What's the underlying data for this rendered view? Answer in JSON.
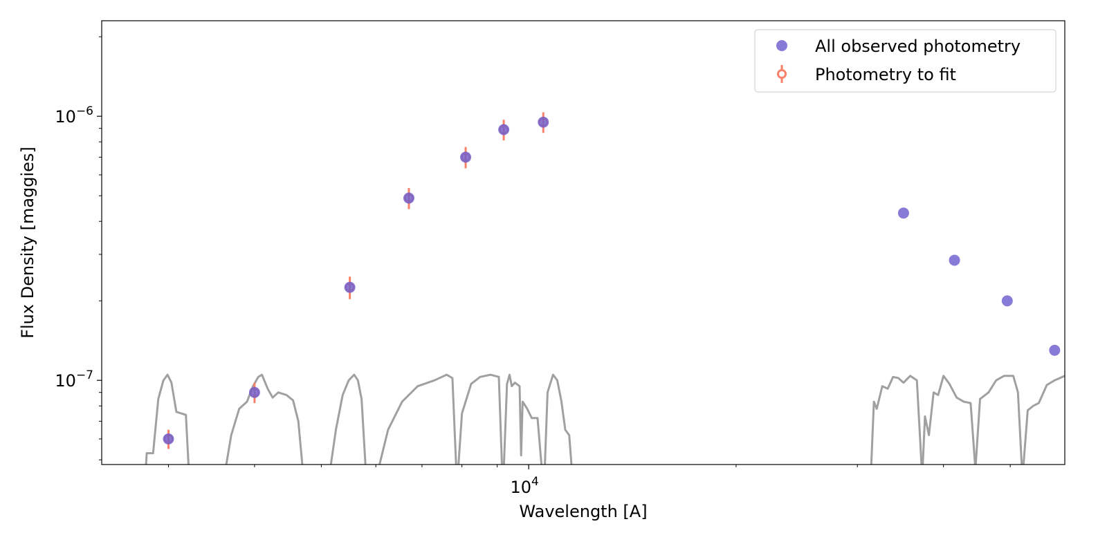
{
  "chart_data": {
    "type": "scatter",
    "title": "",
    "xlabel": "Wavelength [A]",
    "ylabel": "Flux Density [maggies]",
    "xscale": "log",
    "yscale": "log",
    "xlim": [
      2400,
      60000
    ],
    "ylim": [
      4.8e-08,
      2.3e-06
    ],
    "x_major_ticks": [
      10000
    ],
    "y_major_ticks": [
      1e-07,
      1e-06
    ],
    "grid": false,
    "legend_position": "top-right",
    "series": [
      {
        "name": "All observed photometry",
        "marker": "circle",
        "color": "#6a5acd",
        "points": [
          {
            "x": 3000,
            "y": 6e-08
          },
          {
            "x": 4000,
            "y": 9e-08
          },
          {
            "x": 5500,
            "y": 2.25e-07
          },
          {
            "x": 6700,
            "y": 4.9e-07
          },
          {
            "x": 8100,
            "y": 7e-07
          },
          {
            "x": 9200,
            "y": 8.9e-07
          },
          {
            "x": 10500,
            "y": 9.5e-07
          },
          {
            "x": 35000,
            "y": 4.3e-07
          },
          {
            "x": 41500,
            "y": 2.85e-07
          },
          {
            "x": 49500,
            "y": 2e-07
          },
          {
            "x": 58000,
            "y": 1.3e-07
          }
        ]
      },
      {
        "name": "Photometry to fit",
        "marker": "errorbar",
        "color": "#fa8068",
        "points": [
          {
            "x": 3000,
            "y": 6e-08,
            "yerr": 5e-09
          },
          {
            "x": 4000,
            "y": 9e-08,
            "yerr": 8e-09
          },
          {
            "x": 5500,
            "y": 2.25e-07,
            "yerr": 2.2e-08
          },
          {
            "x": 6700,
            "y": 4.9e-07,
            "yerr": 4.5e-08
          },
          {
            "x": 8100,
            "y": 7e-07,
            "yerr": 6.5e-08
          },
          {
            "x": 9200,
            "y": 8.9e-07,
            "yerr": 8e-08
          },
          {
            "x": 10500,
            "y": 9.5e-07,
            "yerr": 8.5e-08
          }
        ]
      }
    ],
    "filter_curves": {
      "color": "#a0a0a0",
      "curves": [
        [
          [
            2780,
            4.6e-08
          ],
          [
            2790,
            5.3e-08
          ],
          [
            2850,
            5.3e-08
          ],
          [
            2900,
            8.5e-08
          ],
          [
            2950,
            1e-07
          ],
          [
            2990,
            1.05e-07
          ],
          [
            3030,
            9.8e-08
          ],
          [
            3080,
            7.6e-08
          ],
          [
            3180,
            7.4e-08
          ],
          [
            3210,
            4.6e-08
          ]
        ],
        [
          [
            3630,
            4.6e-08
          ],
          [
            3700,
            6.2e-08
          ],
          [
            3800,
            7.8e-08
          ],
          [
            3900,
            8.3e-08
          ],
          [
            3980,
            9.5e-08
          ],
          [
            4050,
            1.03e-07
          ],
          [
            4100,
            1.05e-07
          ],
          [
            4180,
            9.3e-08
          ],
          [
            4250,
            8.6e-08
          ],
          [
            4330,
            9e-08
          ],
          [
            4450,
            8.8e-08
          ],
          [
            4550,
            8.4e-08
          ],
          [
            4630,
            7e-08
          ],
          [
            4700,
            4.6e-08
          ]
        ],
        [
          [
            5150,
            4.6e-08
          ],
          [
            5250,
            6.5e-08
          ],
          [
            5370,
            8.8e-08
          ],
          [
            5480,
            1e-07
          ],
          [
            5580,
            1.05e-07
          ],
          [
            5650,
            1e-07
          ],
          [
            5720,
            8.5e-08
          ],
          [
            5800,
            4.6e-08
          ]
        ],
        [
          [
            6050,
            4.6e-08
          ],
          [
            6250,
            6.5e-08
          ],
          [
            6550,
            8.3e-08
          ],
          [
            6900,
            9.5e-08
          ],
          [
            7300,
            1e-07
          ],
          [
            7600,
            1.05e-07
          ],
          [
            7750,
            1.02e-07
          ],
          [
            7850,
            4.6e-08
          ]
        ],
        [
          [
            7900,
            4.6e-08
          ],
          [
            8000,
            7.5e-08
          ],
          [
            8250,
            9.7e-08
          ],
          [
            8500,
            1.03e-07
          ],
          [
            8800,
            1.05e-07
          ],
          [
            9050,
            1.03e-07
          ],
          [
            9150,
            4.6e-08
          ]
        ],
        [
          [
            9200,
            4.6e-08
          ],
          [
            9300,
            9.7e-08
          ],
          [
            9380,
            1.05e-07
          ],
          [
            9450,
            9.5e-08
          ],
          [
            9550,
            9.8e-08
          ],
          [
            9700,
            9.5e-08
          ],
          [
            9750,
            5.2e-08
          ],
          [
            9800,
            8.3e-08
          ],
          [
            9950,
            7.8e-08
          ],
          [
            10100,
            7.2e-08
          ],
          [
            10300,
            7.2e-08
          ],
          [
            10450,
            4.6e-08
          ]
        ],
        [
          [
            10550,
            4.6e-08
          ],
          [
            10650,
            9e-08
          ],
          [
            10850,
            1.05e-07
          ],
          [
            11000,
            1e-07
          ],
          [
            11150,
            8.4e-08
          ],
          [
            11300,
            6.5e-08
          ],
          [
            11450,
            6.2e-08
          ],
          [
            11550,
            4.6e-08
          ]
        ],
        [
          [
            31400,
            4.6e-08
          ],
          [
            31700,
            8.3e-08
          ],
          [
            32000,
            7.8e-08
          ],
          [
            32600,
            9.5e-08
          ],
          [
            33200,
            9.3e-08
          ],
          [
            33800,
            1.03e-07
          ],
          [
            34400,
            1.02e-07
          ],
          [
            35000,
            9.8e-08
          ],
          [
            35800,
            1.04e-07
          ],
          [
            36600,
            1e-07
          ],
          [
            37200,
            4.6e-08
          ]
        ],
        [
          [
            37300,
            4.6e-08
          ],
          [
            37600,
            7.3e-08
          ],
          [
            38100,
            6.2e-08
          ],
          [
            38700,
            9e-08
          ],
          [
            39300,
            8.8e-08
          ],
          [
            40000,
            1.04e-07
          ],
          [
            40800,
            9.7e-08
          ],
          [
            41800,
            8.6e-08
          ],
          [
            42800,
            8.3e-08
          ],
          [
            43800,
            8.2e-08
          ],
          [
            44500,
            4.6e-08
          ]
        ],
        [
          [
            44500,
            4.6e-08
          ],
          [
            45200,
            8.5e-08
          ],
          [
            46500,
            9e-08
          ],
          [
            47700,
            1e-07
          ],
          [
            49000,
            1.04e-07
          ],
          [
            50500,
            1.04e-07
          ],
          [
            51300,
            9e-08
          ],
          [
            52000,
            4.6e-08
          ]
        ],
        [
          [
            52200,
            4.6e-08
          ],
          [
            53000,
            7.7e-08
          ],
          [
            54000,
            8e-08
          ],
          [
            55000,
            8.2e-08
          ],
          [
            56500,
            9.6e-08
          ],
          [
            58000,
            1e-07
          ],
          [
            60000,
            1.04e-07
          ],
          [
            62000,
            1.05e-07
          ],
          [
            64000,
            1.02e-07
          ],
          [
            66000,
            9.2e-08
          ],
          [
            67500,
            4.6e-08
          ]
        ]
      ]
    }
  }
}
